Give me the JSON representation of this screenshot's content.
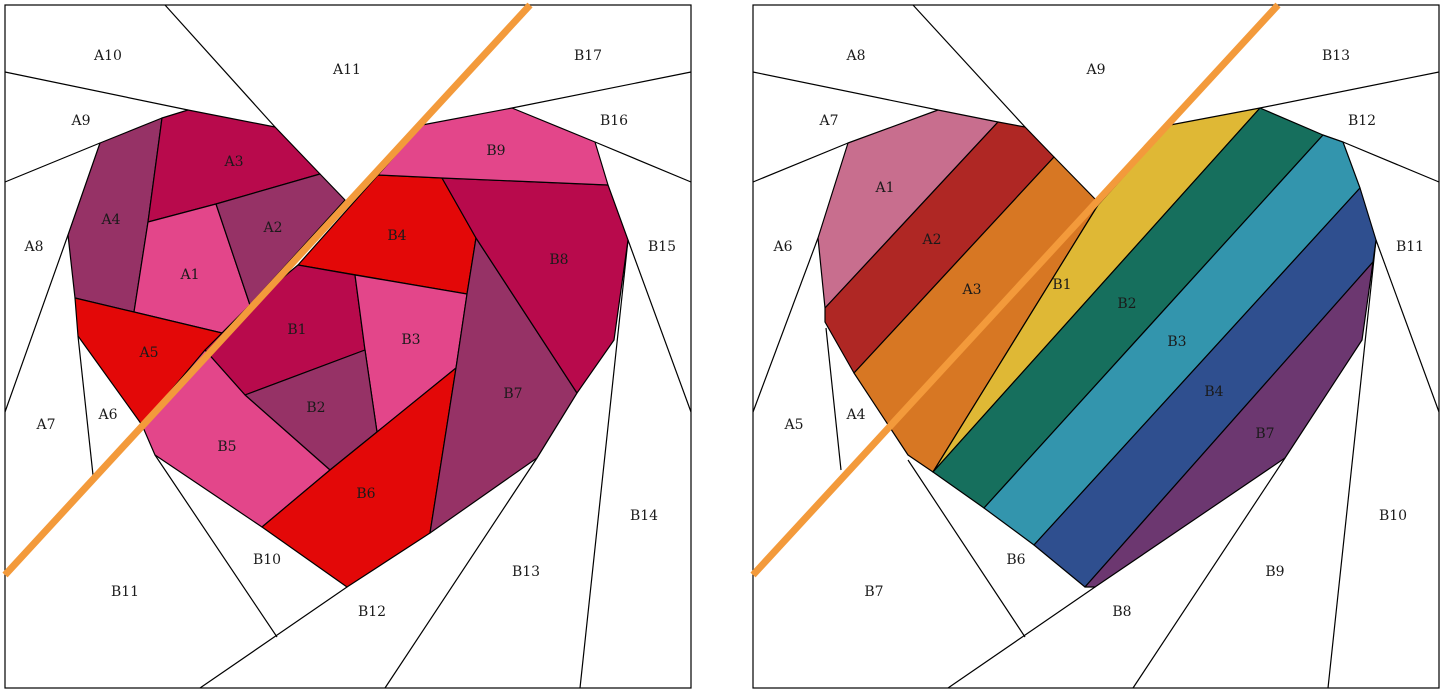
{
  "diagrams": [
    {
      "id": "heart-scrappy",
      "labels": [
        "A10",
        "A11",
        "B17",
        "A9",
        "B16",
        "A3",
        "B9",
        "A4",
        "A2",
        "B4",
        "A8",
        "A1",
        "B15",
        "B8",
        "B1",
        "B3",
        "A5",
        "A7",
        "A6",
        "B2",
        "B7",
        "B5",
        "B6",
        "B14",
        "B10",
        "B13",
        "B11",
        "B12"
      ],
      "colors": {
        "magenta": "#b80a4c",
        "pink": "#e3468a",
        "plum": "#963266",
        "red": "#e30808",
        "cut_line": "#f39a3b"
      }
    },
    {
      "id": "heart-rainbow",
      "labels": [
        "A8",
        "A9",
        "B13",
        "A7",
        "B12",
        "A1",
        "A6",
        "A2",
        "B11",
        "A3",
        "B1",
        "B2",
        "B3",
        "B4",
        "A5",
        "A4",
        "B7",
        "B10",
        "B6",
        "B9",
        "B7",
        "B8"
      ],
      "colors": {
        "rose": "#c86e8e",
        "red": "#af2724",
        "orange": "#d77723",
        "yellow": "#dfb835",
        "green": "#166f5d",
        "teal": "#3395ad",
        "blue": "#2f4f8f",
        "purple": "#6c3770",
        "cut_line": "#f39a3b"
      }
    }
  ]
}
